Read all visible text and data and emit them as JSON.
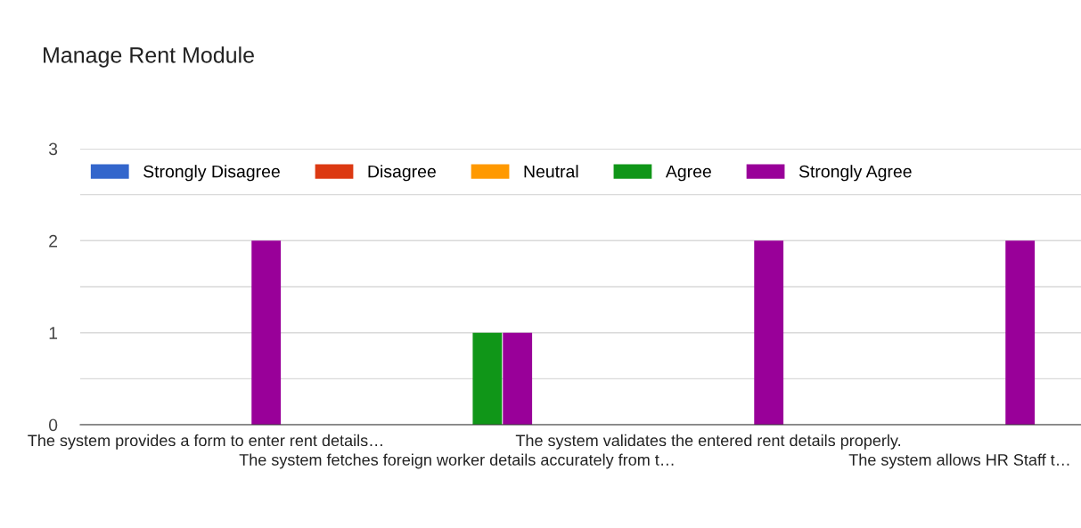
{
  "chart_data": {
    "type": "bar",
    "title": "Manage Rent Module",
    "categories": [
      "The system provides a form to enter rent details…",
      "The system fetches foreign worker details accurately from t…",
      "The system validates the entered rent details properly.",
      "The system allows HR Staff t…"
    ],
    "series": [
      {
        "name": "Strongly Disagree",
        "color": "#3366cc",
        "values": [
          0,
          0,
          0,
          0
        ]
      },
      {
        "name": "Disagree",
        "color": "#dc3912",
        "values": [
          0,
          0,
          0,
          0
        ]
      },
      {
        "name": "Neutral",
        "color": "#ff9900",
        "values": [
          0,
          0,
          0,
          0
        ]
      },
      {
        "name": "Agree",
        "color": "#109618",
        "values": [
          0,
          1,
          0,
          0
        ]
      },
      {
        "name": "Strongly Agree",
        "color": "#990099",
        "values": [
          2,
          1,
          2,
          2
        ]
      }
    ],
    "ylim": [
      0,
      3
    ],
    "yticks": [
      0,
      {
        "value": 0.5,
        "label": null
      },
      1,
      {
        "value": 1.5,
        "label": null
      },
      2,
      {
        "value": 2.5,
        "label": null
      },
      3
    ],
    "grid": "y",
    "legend": "top"
  }
}
